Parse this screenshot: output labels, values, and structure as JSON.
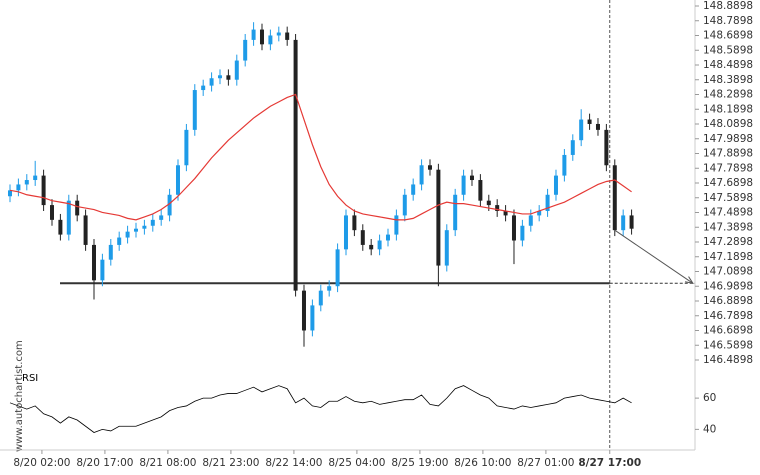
{
  "chart_data": {
    "type": "candlestick",
    "x": [
      0,
      1,
      2,
      3,
      4,
      5,
      6,
      7,
      8,
      9,
      10,
      11,
      12,
      13,
      14,
      15,
      16,
      17,
      18,
      19,
      20,
      21,
      22,
      23,
      24,
      25,
      26,
      27,
      28,
      29,
      30,
      31,
      32,
      33,
      34,
      35,
      36,
      37,
      38,
      39,
      40,
      41,
      42,
      43,
      44,
      45,
      46,
      47,
      48,
      49,
      50,
      51,
      52,
      53,
      54,
      55,
      56,
      57,
      58,
      59,
      60,
      61,
      62,
      63,
      64,
      65,
      66,
      67,
      68,
      69,
      70,
      71,
      72,
      73,
      74
    ],
    "open": [
      147.6,
      147.64,
      147.68,
      147.71,
      147.74,
      147.54,
      147.44,
      147.34,
      147.57,
      147.47,
      147.27,
      147.03,
      147.17,
      147.27,
      147.32,
      147.36,
      147.38,
      147.4,
      147.44,
      147.47,
      147.61,
      147.81,
      148.05,
      148.32,
      148.35,
      148.4,
      148.42,
      148.39,
      148.52,
      148.66,
      148.73,
      148.63,
      148.69,
      148.71,
      148.66,
      146.96,
      146.69,
      146.86,
      146.96,
      146.99,
      147.24,
      147.47,
      147.37,
      147.27,
      147.24,
      147.3,
      147.34,
      147.47,
      147.61,
      147.68,
      147.81,
      147.78,
      147.13,
      147.37,
      147.61,
      147.74,
      147.71,
      147.57,
      147.54,
      147.5,
      147.47,
      147.3,
      147.4,
      147.47,
      147.5,
      147.61,
      147.74,
      147.88,
      147.98,
      148.12,
      148.09,
      148.05,
      147.81,
      147.37,
      147.47
    ],
    "high": [
      147.68,
      147.72,
      147.75,
      147.84,
      147.78,
      147.58,
      147.48,
      147.61,
      147.61,
      147.51,
      147.31,
      147.21,
      147.31,
      147.36,
      147.4,
      147.42,
      147.44,
      147.48,
      147.51,
      147.65,
      147.85,
      148.09,
      148.36,
      148.39,
      148.44,
      148.46,
      148.46,
      148.56,
      148.7,
      148.78,
      148.77,
      148.73,
      148.75,
      148.75,
      148.7,
      147.0,
      146.9,
      147.0,
      147.03,
      147.28,
      147.51,
      147.51,
      147.41,
      147.31,
      147.34,
      147.38,
      147.51,
      147.65,
      147.72,
      147.85,
      147.85,
      147.82,
      147.41,
      147.65,
      147.78,
      147.78,
      147.75,
      147.61,
      147.58,
      147.54,
      147.51,
      147.44,
      147.51,
      147.54,
      147.65,
      147.78,
      147.92,
      148.02,
      148.19,
      148.16,
      148.13,
      148.09,
      147.85,
      147.51,
      147.51
    ],
    "low": [
      147.56,
      147.6,
      147.64,
      147.67,
      147.5,
      147.4,
      147.3,
      147.3,
      147.43,
      147.23,
      146.9,
      146.99,
      147.13,
      147.23,
      147.28,
      147.32,
      147.34,
      147.36,
      147.4,
      147.43,
      147.57,
      147.77,
      148.01,
      148.28,
      148.31,
      148.36,
      148.35,
      148.35,
      148.48,
      148.62,
      148.59,
      148.59,
      148.65,
      148.62,
      146.92,
      146.58,
      146.65,
      146.82,
      146.92,
      146.95,
      147.2,
      147.33,
      147.23,
      147.2,
      147.2,
      147.26,
      147.3,
      147.43,
      147.57,
      147.64,
      147.74,
      146.99,
      147.09,
      147.33,
      147.57,
      147.67,
      147.53,
      147.5,
      147.46,
      147.43,
      147.14,
      147.26,
      147.36,
      147.43,
      147.46,
      147.57,
      147.7,
      147.84,
      147.94,
      148.05,
      148.01,
      147.77,
      147.33,
      147.33,
      147.34
    ],
    "close": [
      147.64,
      147.68,
      147.71,
      147.74,
      147.54,
      147.44,
      147.34,
      147.57,
      147.47,
      147.27,
      147.03,
      147.17,
      147.27,
      147.32,
      147.36,
      147.38,
      147.4,
      147.44,
      147.47,
      147.61,
      147.81,
      148.05,
      148.32,
      148.35,
      148.4,
      148.42,
      148.39,
      148.52,
      148.66,
      148.73,
      148.63,
      148.69,
      148.71,
      148.66,
      146.96,
      146.69,
      146.86,
      146.96,
      146.99,
      147.24,
      147.47,
      147.37,
      147.27,
      147.24,
      147.3,
      147.34,
      147.47,
      147.61,
      147.68,
      147.81,
      147.78,
      147.13,
      147.37,
      147.61,
      147.74,
      147.71,
      147.57,
      147.54,
      147.5,
      147.47,
      147.3,
      147.4,
      147.47,
      147.5,
      147.61,
      147.74,
      147.88,
      147.98,
      148.12,
      148.09,
      148.05,
      147.81,
      147.37,
      147.47,
      147.38
    ],
    "up_color": "#1e9be8",
    "down_color": "#222222",
    "moving_average": {
      "color": "#e53935",
      "values": [
        147.64,
        147.63,
        147.61,
        147.6,
        147.59,
        147.57,
        147.56,
        147.55,
        147.53,
        147.52,
        147.51,
        147.49,
        147.48,
        147.47,
        147.45,
        147.44,
        147.46,
        147.48,
        147.51,
        147.55,
        147.6,
        147.66,
        147.72,
        147.79,
        147.86,
        147.92,
        147.98,
        148.03,
        148.08,
        148.13,
        148.17,
        148.21,
        148.24,
        148.27,
        148.29,
        148.12,
        147.95,
        147.8,
        147.68,
        147.6,
        147.54,
        147.5,
        147.48,
        147.47,
        147.46,
        147.45,
        147.44,
        147.44,
        147.45,
        147.48,
        147.51,
        147.54,
        147.56,
        147.55,
        147.55,
        147.54,
        147.53,
        147.52,
        147.51,
        147.5,
        147.49,
        147.48,
        147.48,
        147.5,
        147.52,
        147.54,
        147.56,
        147.59,
        147.62,
        147.65,
        147.68,
        147.7,
        147.71,
        147.67,
        147.63
      ]
    },
    "support_level": {
      "value": 147.0098,
      "color": "#333333"
    },
    "forecast": {
      "x": [
        72,
        81.3
      ],
      "values": [
        147.37,
        147.0098
      ],
      "color": "#555555"
    },
    "xlim": [
      -1.19,
      81.55
    ],
    "xticks": [
      {
        "value": 3.8,
        "label": "8/20 02:00"
      },
      {
        "value": 11.3,
        "label": "8/20 17:00"
      },
      {
        "value": 18.8,
        "label": "8/21 08:00"
      },
      {
        "value": 26.3,
        "label": "8/21 23:00"
      },
      {
        "value": 33.8,
        "label": "8/22 14:00"
      },
      {
        "value": 41.3,
        "label": "8/25 04:00"
      },
      {
        "value": 48.8,
        "label": "8/25 19:00"
      },
      {
        "value": 56.3,
        "label": "8/26 10:00"
      },
      {
        "value": 63.8,
        "label": "8/27 01:00"
      },
      {
        "value": 71.4,
        "label": "8/27 17:00"
      }
    ],
    "ylim": [
      146.4898,
      148.8898
    ],
    "yticks": [
      146.4898,
      146.5898,
      146.6898,
      146.7898,
      146.8898,
      146.9898,
      147.0898,
      147.1898,
      147.2898,
      147.3898,
      147.4898,
      147.5898,
      147.6898,
      147.7898,
      147.8898,
      147.9898,
      148.0898,
      148.1898,
      148.2898,
      148.3898,
      148.4898,
      148.5898,
      148.6898,
      148.7898,
      148.8898
    ],
    "rsi": {
      "title": "RSI",
      "color": "#000000",
      "ylim": [
        30,
        78
      ],
      "yticks": [
        40,
        60
      ],
      "values": [
        57,
        55,
        53,
        55,
        50,
        48,
        44,
        48,
        46,
        42,
        38,
        40,
        39,
        42,
        42,
        42,
        44,
        46,
        48,
        52,
        54,
        55,
        58,
        60,
        60,
        62,
        63,
        63,
        65,
        67,
        64,
        66,
        68,
        66,
        57,
        60,
        55,
        54,
        58,
        58,
        61,
        58,
        57,
        58,
        56,
        57,
        58,
        59,
        59,
        62,
        56,
        55,
        60,
        66,
        68,
        65,
        62,
        60,
        55,
        54,
        53,
        55,
        54,
        55,
        56,
        57,
        60,
        61,
        62,
        60,
        59,
        58,
        57,
        60,
        57
      ]
    },
    "source": "www.autochartist.com"
  }
}
